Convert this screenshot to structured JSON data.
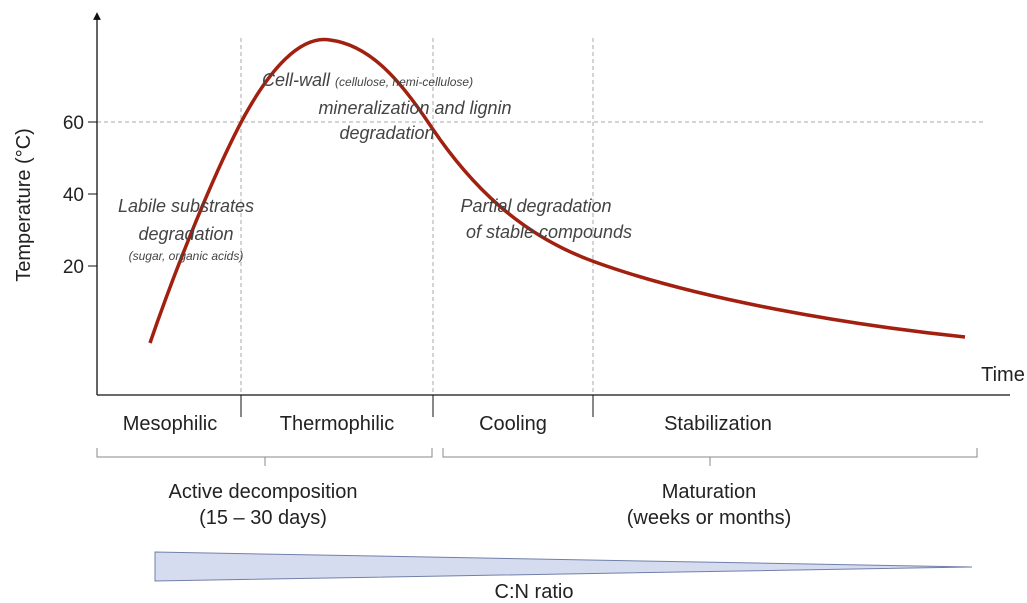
{
  "axes": {
    "y_label": "Temperature (°C)",
    "x_label": "Time",
    "y_ticks": [
      "20",
      "40",
      "60"
    ]
  },
  "phases": [
    "Mesophilic",
    "Thermophilic",
    "Cooling",
    "Stabilization"
  ],
  "stages": [
    {
      "name": "Active decomposition",
      "duration": "(15 – 30 days)"
    },
    {
      "name": "Maturation",
      "duration": "(weeks or months)"
    }
  ],
  "annotations": {
    "labile": [
      "Labile substrates",
      "degradation",
      "(sugar, organic acids)"
    ],
    "cell_wall": [
      "Cell-wall",
      "(cellulose, hemi-cellulose)",
      "mineralization and lignin",
      "degradation"
    ],
    "partial": [
      "Partial degradation",
      "of stable compounds"
    ]
  },
  "ratio_label": "C:N ratio"
}
